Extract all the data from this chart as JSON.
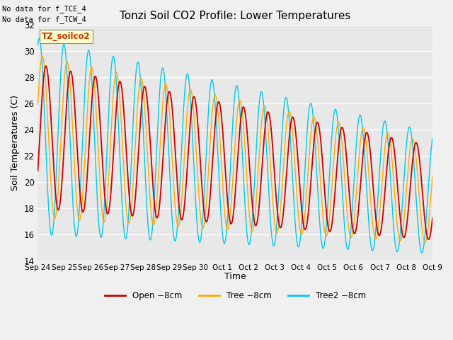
{
  "title": "Tonzi Soil CO2 Profile: Lower Temperatures",
  "ylabel": "Soil Temperatures (C)",
  "xlabel": "Time",
  "ylim": [
    14,
    32
  ],
  "yticks": [
    14,
    16,
    18,
    20,
    22,
    24,
    26,
    28,
    30,
    32
  ],
  "x_tick_labels": [
    "Sep 24",
    "Sep 25",
    "Sep 26",
    "Sep 27",
    "Sep 28",
    "Sep 29",
    "Sep 30",
    "Oct 1",
    "Oct 2",
    "Oct 3",
    "Oct 4",
    "Oct 5",
    "Oct 6",
    "Oct 7",
    "Oct 8",
    "Oct 9"
  ],
  "no_data_text": [
    "No data for f_TCE_4",
    "No data for f_TCW_4"
  ],
  "watermark_text": "TZ_soilco2",
  "line_colors": [
    "#cc0000",
    "#ffaa00",
    "#00ccee"
  ],
  "line_labels": [
    "Open −8cm",
    "Tree −8cm",
    "Tree2 −8cm"
  ],
  "fig_bg_color": "#f0f0f0",
  "plot_bg_color": "#e8e8e8",
  "grid_color": "#ffffff",
  "n_days": 16,
  "points_per_day": 96,
  "figsize": [
    6.4,
    4.8
  ],
  "dpi": 100
}
